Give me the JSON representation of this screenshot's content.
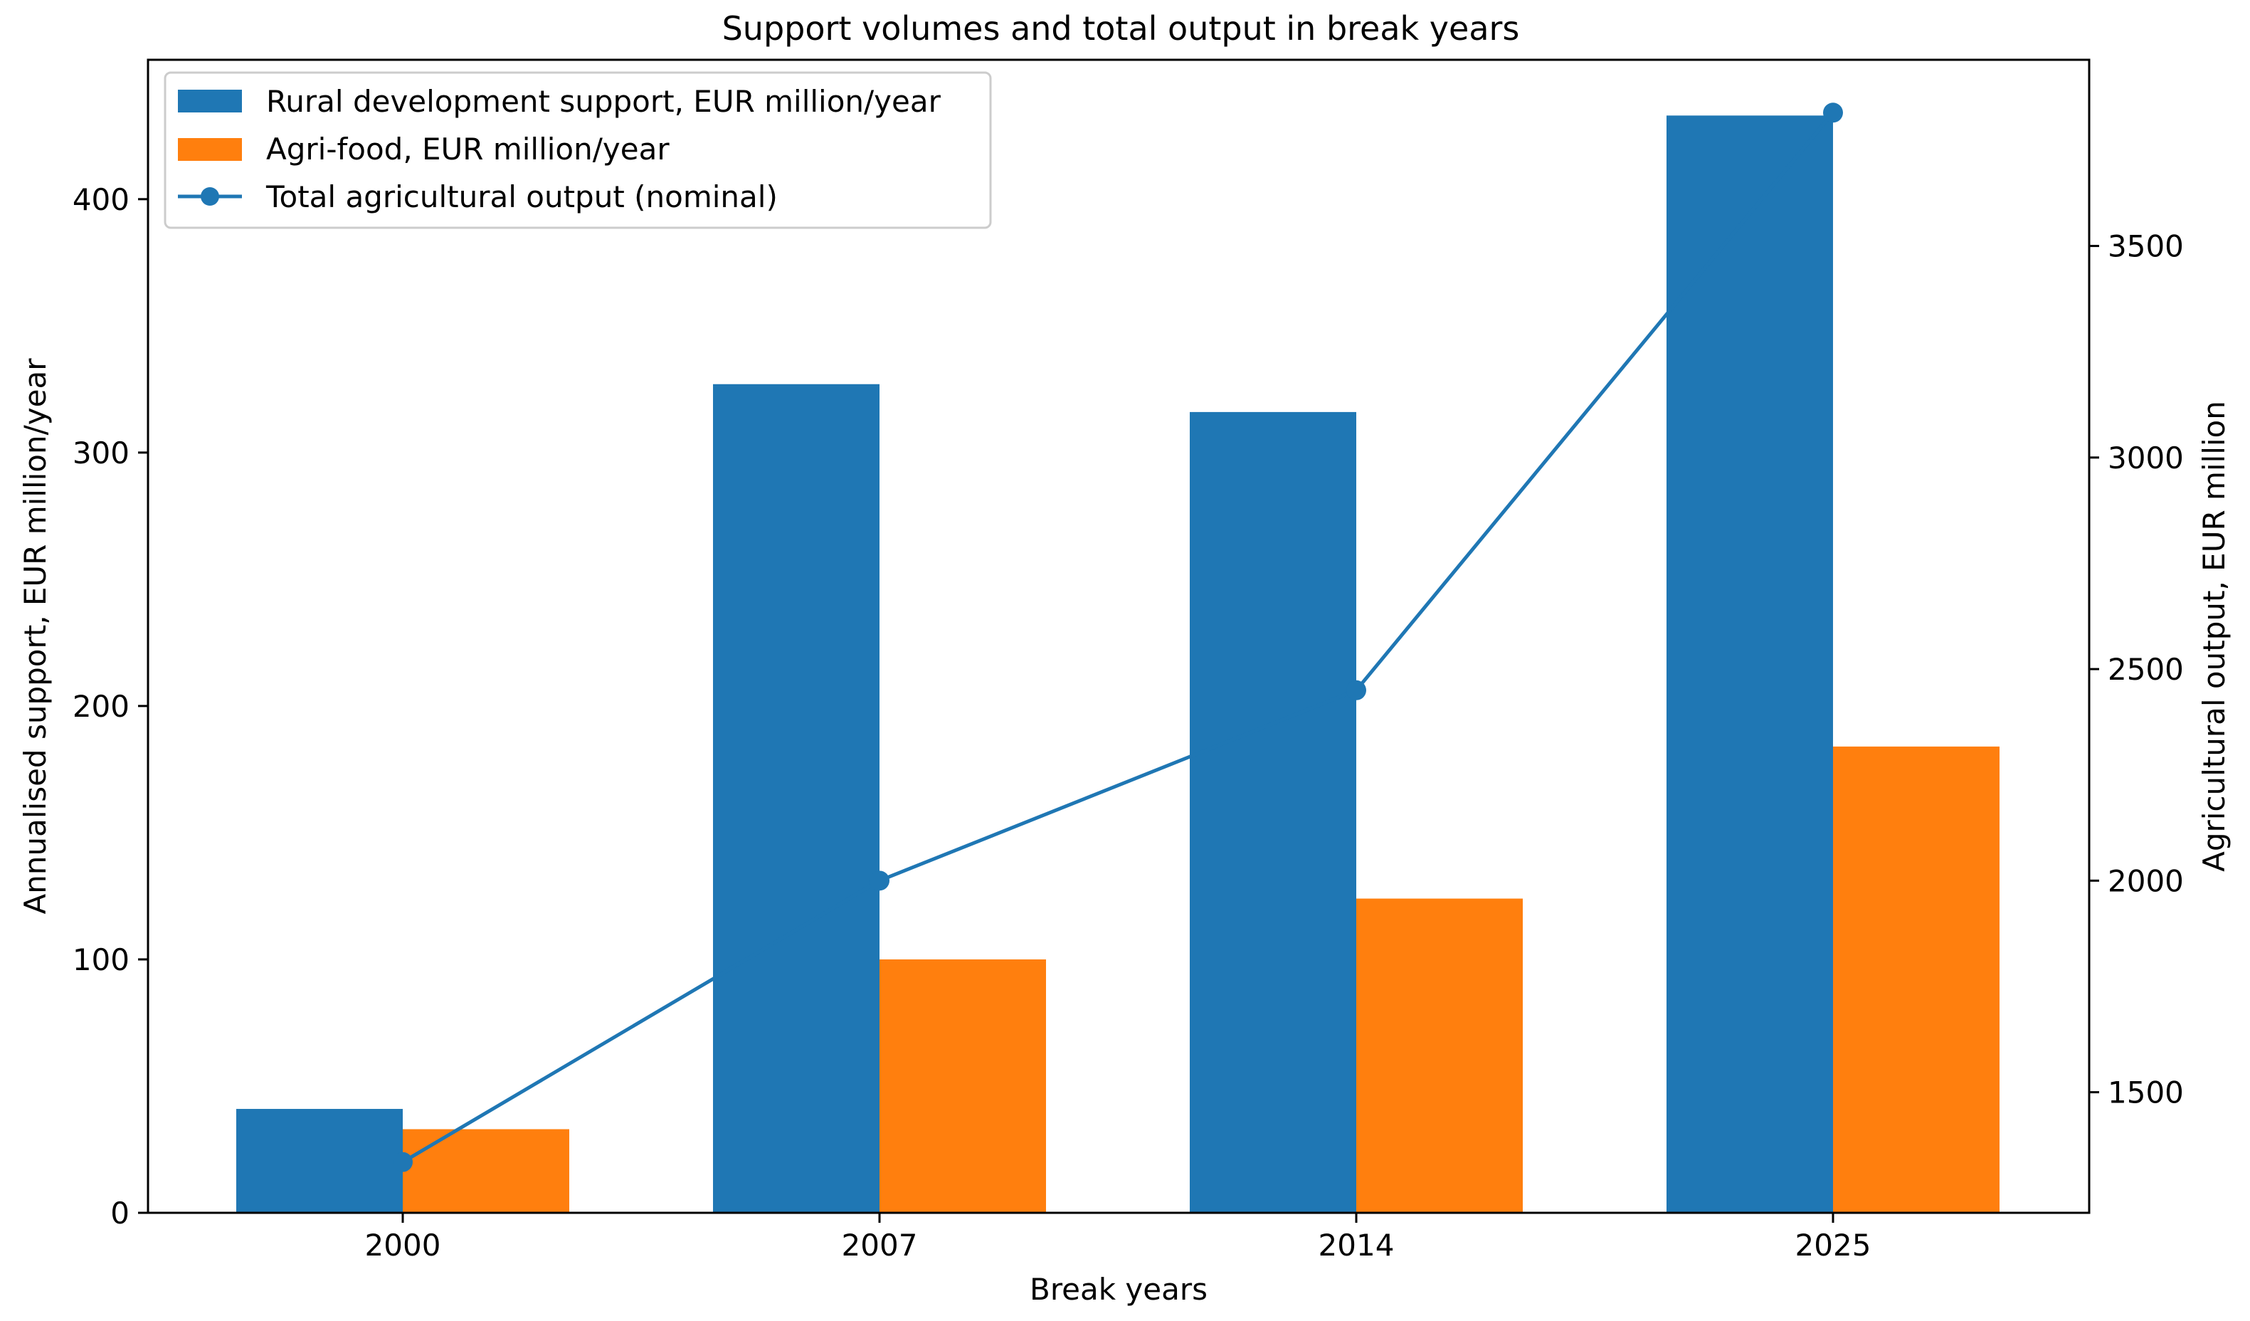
{
  "chart_data": {
    "type": "bar",
    "title": "Support volumes and total output in break years",
    "xlabel": "Break years",
    "ylabel_left": "Annualised support, EUR million/year",
    "ylabel_right": "Agricultural output, EUR million",
    "categories": [
      "2000",
      "2007",
      "2014",
      "2025"
    ],
    "y_left": {
      "lim": [
        0,
        455
      ],
      "ticks": [
        0,
        100,
        200,
        300,
        400
      ]
    },
    "y_right": {
      "lim": [
        1215,
        3940
      ],
      "ticks": [
        1500,
        2000,
        2500,
        3000,
        3500
      ]
    },
    "series": [
      {
        "name": "Rural development support, EUR million/year",
        "kind": "bar",
        "axis": "left",
        "color": "#1f77b4",
        "values": [
          41,
          327,
          316,
          433
        ]
      },
      {
        "name": "Agri-food, EUR million/year",
        "kind": "bar",
        "axis": "left",
        "color": "#ff7f0e",
        "values": [
          33,
          100,
          124,
          184
        ]
      },
      {
        "name": "Total agricultural output (nominal)",
        "kind": "line",
        "marker": "circle",
        "axis": "right",
        "color": "#1f77b4",
        "values": [
          1335,
          2000,
          2450,
          3815
        ]
      }
    ],
    "legend_position": "upper-left",
    "grid": false
  }
}
